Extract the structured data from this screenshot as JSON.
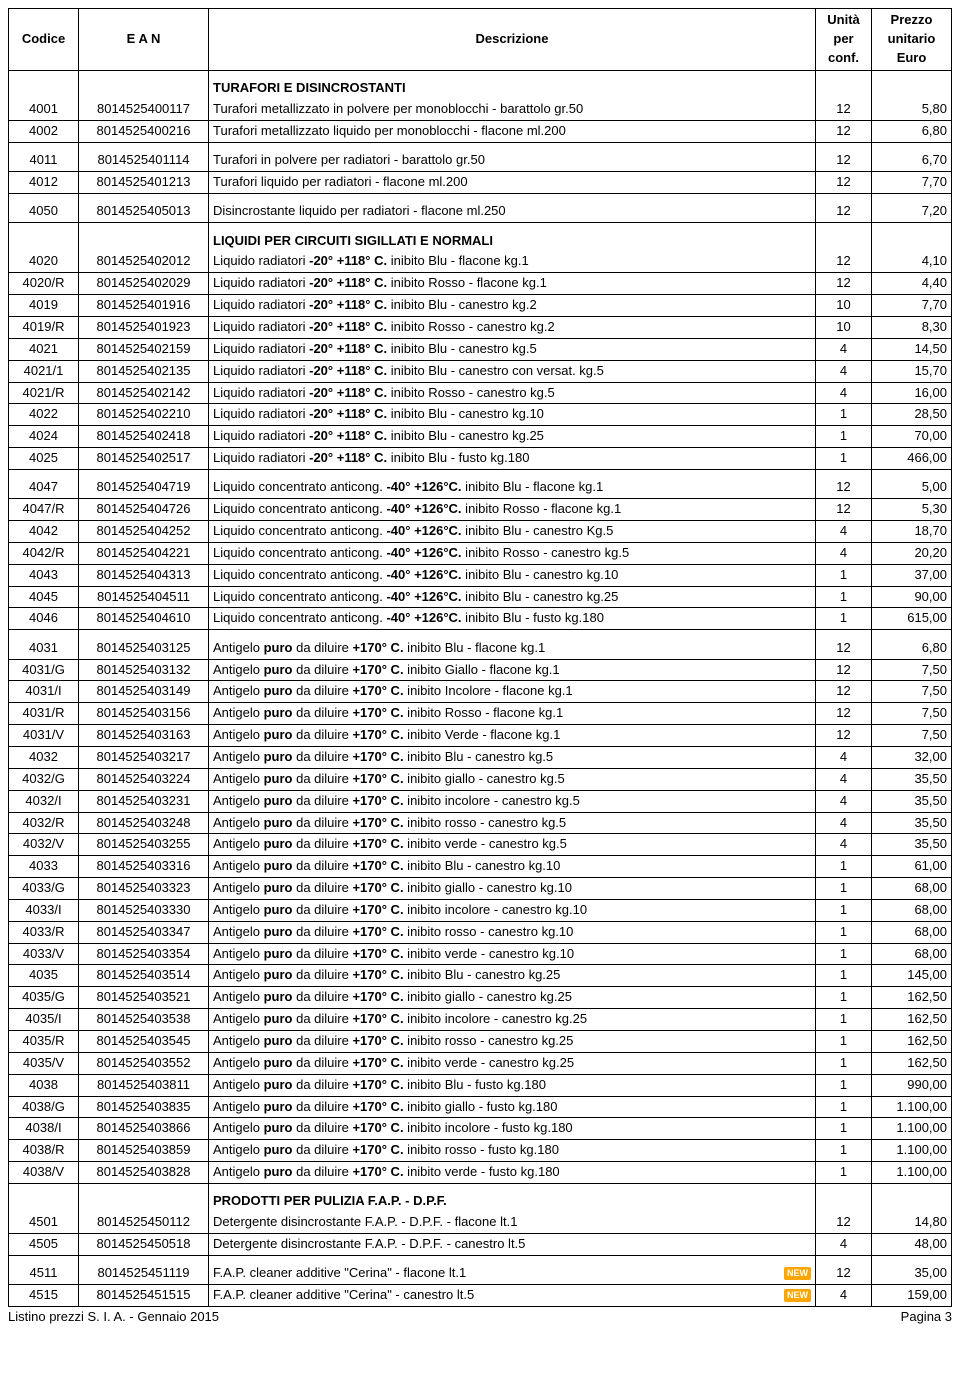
{
  "columns": {
    "codice": "Codice",
    "ean": "E A N",
    "desc": "Descrizione",
    "unita": "Unità per conf.",
    "prezzo": "Prezzo unitario Euro"
  },
  "footer_left": "Listino prezzi S. I. A. - Gennaio 2015",
  "footer_right": "Pagina  3",
  "new_label": "NEW",
  "groups": [
    {
      "title": "TURAFORI E DISINCROSTANTI",
      "spacer_before": true,
      "rows": [
        {
          "codice": "4001",
          "ean": "8014525400117",
          "desc": "Turafori metallizzato in polvere per monoblocchi - barattolo gr.50",
          "unita": "12",
          "prezzo": "5,80",
          "sep": true
        },
        {
          "codice": "4002",
          "ean": "8014525400216",
          "desc": "Turafori metallizzato liquido per monoblocchi - flacone ml.200",
          "unita": "12",
          "prezzo": "6,80",
          "sep": true,
          "spacer_after": true
        },
        {
          "codice": "4011",
          "ean": "8014525401114",
          "desc": "Turafori in polvere per radiatori - barattolo gr.50",
          "unita": "12",
          "prezzo": "6,70",
          "sep": true
        },
        {
          "codice": "4012",
          "ean": "8014525401213",
          "desc": "Turafori liquido per radiatori - flacone ml.200",
          "unita": "12",
          "prezzo": "7,70",
          "sep": true,
          "spacer_after": true
        },
        {
          "codice": "4050",
          "ean": "8014525405013",
          "desc": "Disincrostante liquido per radiatori - flacone ml.250",
          "unita": "12",
          "prezzo": "7,20",
          "sep": true
        }
      ]
    },
    {
      "title": "LIQUIDI PER CIRCUITI SIGILLATI E NORMALI",
      "spacer_before": true,
      "rows": [
        {
          "codice": "4020",
          "ean": "8014525402012",
          "desc_html": "Liquido radiatori <b>-20° +118° C.</b> inibito Blu - flacone kg.1",
          "unita": "12",
          "prezzo": "4,10",
          "sep": true
        },
        {
          "codice": "4020/R",
          "ean": "8014525402029",
          "desc_html": "Liquido radiatori <b>-20° +118° C.</b> inibito Rosso - flacone kg.1",
          "unita": "12",
          "prezzo": "4,40",
          "sep": true
        },
        {
          "codice": "4019",
          "ean": "8014525401916",
          "desc_html": "Liquido radiatori <b>-20° +118° C.</b> inibito Blu - canestro kg.2",
          "unita": "10",
          "prezzo": "7,70",
          "sep": true
        },
        {
          "codice": "4019/R",
          "ean": "8014525401923",
          "desc_html": "Liquido radiatori <b>-20° +118° C.</b> inibito Rosso - canestro kg.2",
          "unita": "10",
          "prezzo": "8,30",
          "sep": true
        },
        {
          "codice": "4021",
          "ean": "8014525402159",
          "desc_html": "Liquido radiatori <b>-20° +118° C.</b> inibito Blu - canestro kg.5",
          "unita": "4",
          "prezzo": "14,50",
          "sep": true
        },
        {
          "codice": "4021/1",
          "ean": "8014525402135",
          "desc_html": "Liquido radiatori <b>-20° +118° C.</b> inibito Blu - canestro con versat. kg.5",
          "unita": "4",
          "prezzo": "15,70",
          "sep": true
        },
        {
          "codice": "4021/R",
          "ean": "8014525402142",
          "desc_html": "Liquido radiatori <b>-20° +118° C.</b> inibito Rosso - canestro kg.5",
          "unita": "4",
          "prezzo": "16,00",
          "sep": true
        },
        {
          "codice": "4022",
          "ean": "8014525402210",
          "desc_html": "Liquido radiatori <b>-20° +118° C.</b> inibito Blu - canestro kg.10",
          "unita": "1",
          "prezzo": "28,50",
          "sep": true
        },
        {
          "codice": "4024",
          "ean": "8014525402418",
          "desc_html": "Liquido radiatori <b>-20° +118° C.</b> inibito Blu - canestro kg.25",
          "unita": "1",
          "prezzo": "70,00",
          "sep": true
        },
        {
          "codice": "4025",
          "ean": "8014525402517",
          "desc_html": "Liquido radiatori <b>-20° +118° C.</b> inibito Blu - fusto kg.180",
          "unita": "1",
          "prezzo": "466,00",
          "sep": true,
          "spacer_after": true
        },
        {
          "codice": "4047",
          "ean": "8014525404719",
          "desc_html": "Liquido concentrato anticong. <b>-40° +126°C.</b> inibito Blu - flacone kg.1",
          "unita": "12",
          "prezzo": "5,00",
          "sep": true
        },
        {
          "codice": "4047/R",
          "ean": "8014525404726",
          "desc_html": "Liquido concentrato anticong. <b>-40° +126°C.</b> inibito Rosso - flacone kg.1",
          "unita": "12",
          "prezzo": "5,30",
          "sep": true
        },
        {
          "codice": "4042",
          "ean": "8014525404252",
          "desc_html": "Liquido concentrato anticong. <b>-40° +126°C.</b> inibito Blu - canestro Kg.5",
          "unita": "4",
          "prezzo": "18,70",
          "sep": true
        },
        {
          "codice": "4042/R",
          "ean": "8014525404221",
          "desc_html": "Liquido concentrato anticong. <b>-40° +126°C.</b> inibito Rosso - canestro kg.5",
          "unita": "4",
          "prezzo": "20,20",
          "sep": true
        },
        {
          "codice": "4043",
          "ean": "8014525404313",
          "desc_html": "Liquido concentrato anticong. <b>-40° +126°C.</b> inibito Blu - canestro kg.10",
          "unita": "1",
          "prezzo": "37,00",
          "sep": true
        },
        {
          "codice": "4045",
          "ean": "8014525404511",
          "desc_html": "Liquido concentrato anticong. <b>-40° +126°C.</b> inibito Blu - canestro kg.25",
          "unita": "1",
          "prezzo": "90,00",
          "sep": true
        },
        {
          "codice": "4046",
          "ean": "8014525404610",
          "desc_html": "Liquido concentrato anticong. <b>-40° +126°C.</b> inibito Blu - fusto kg.180",
          "unita": "1",
          "prezzo": "615,00",
          "sep": true,
          "spacer_after": true
        },
        {
          "codice": "4031",
          "ean": "8014525403125",
          "desc_html": "Antigelo <b>puro</b> da diluire <b>+170° C.</b> inibito Blu - flacone kg.1",
          "unita": "12",
          "prezzo": "6,80",
          "sep": true
        },
        {
          "codice": "4031/G",
          "ean": "8014525403132",
          "desc_html": "Antigelo <b>puro</b> da diluire <b>+170° C.</b> inibito Giallo - flacone kg.1",
          "unita": "12",
          "prezzo": "7,50",
          "sep": true
        },
        {
          "codice": "4031/I",
          "ean": "8014525403149",
          "desc_html": "Antigelo <b>puro</b> da diluire <b>+170° C.</b> inibito Incolore - flacone kg.1",
          "unita": "12",
          "prezzo": "7,50",
          "sep": true
        },
        {
          "codice": "4031/R",
          "ean": "8014525403156",
          "desc_html": "Antigelo <b>puro</b> da diluire <b>+170° C.</b> inibito Rosso - flacone kg.1",
          "unita": "12",
          "prezzo": "7,50",
          "sep": true
        },
        {
          "codice": "4031/V",
          "ean": "8014525403163",
          "desc_html": "Antigelo <b>puro</b> da diluire <b>+170° C.</b> inibito Verde - flacone kg.1",
          "unita": "12",
          "prezzo": "7,50",
          "sep": true
        },
        {
          "codice": "4032",
          "ean": "8014525403217",
          "desc_html": "Antigelo <b>puro</b> da diluire <b>+170° C.</b> inibito Blu - canestro kg.5",
          "unita": "4",
          "prezzo": "32,00",
          "sep": true
        },
        {
          "codice": "4032/G",
          "ean": "8014525403224",
          "desc_html": "Antigelo <b>puro</b> da diluire <b>+170° C.</b> inibito giallo - canestro kg.5",
          "unita": "4",
          "prezzo": "35,50",
          "sep": true
        },
        {
          "codice": "4032/I",
          "ean": "8014525403231",
          "desc_html": "Antigelo <b>puro</b> da diluire <b>+170° C.</b> inibito incolore - canestro kg.5",
          "unita": "4",
          "prezzo": "35,50",
          "sep": true
        },
        {
          "codice": "4032/R",
          "ean": "8014525403248",
          "desc_html": "Antigelo <b>puro</b> da diluire <b>+170° C.</b> inibito rosso - canestro kg.5",
          "unita": "4",
          "prezzo": "35,50",
          "sep": true
        },
        {
          "codice": "4032/V",
          "ean": "8014525403255",
          "desc_html": "Antigelo <b>puro</b> da diluire <b>+170° C.</b> inibito verde - canestro kg.5",
          "unita": "4",
          "prezzo": "35,50",
          "sep": true
        },
        {
          "codice": "4033",
          "ean": "8014525403316",
          "desc_html": "Antigelo <b>puro</b> da diluire <b>+170° C.</b> inibito Blu - canestro kg.10",
          "unita": "1",
          "prezzo": "61,00",
          "sep": true
        },
        {
          "codice": "4033/G",
          "ean": "8014525403323",
          "desc_html": "Antigelo <b>puro</b> da diluire <b>+170° C.</b> inibito giallo - canestro kg.10",
          "unita": "1",
          "prezzo": "68,00",
          "sep": true
        },
        {
          "codice": "4033/I",
          "ean": "8014525403330",
          "desc_html": "Antigelo <b>puro</b> da diluire <b>+170° C.</b> inibito incolore - canestro kg.10",
          "unita": "1",
          "prezzo": "68,00",
          "sep": true
        },
        {
          "codice": "4033/R",
          "ean": "8014525403347",
          "desc_html": "Antigelo <b>puro</b> da diluire <b>+170° C.</b> inibito rosso - canestro kg.10",
          "unita": "1",
          "prezzo": "68,00",
          "sep": true
        },
        {
          "codice": "4033/V",
          "ean": "8014525403354",
          "desc_html": "Antigelo <b>puro</b> da diluire <b>+170° C.</b> inibito verde - canestro kg.10",
          "unita": "1",
          "prezzo": "68,00",
          "sep": true
        },
        {
          "codice": "4035",
          "ean": "8014525403514",
          "desc_html": "Antigelo <b>puro</b> da diluire <b>+170° C.</b> inibito Blu - canestro kg.25",
          "unita": "1",
          "prezzo": "145,00",
          "sep": true
        },
        {
          "codice": "4035/G",
          "ean": "8014525403521",
          "desc_html": "Antigelo <b>puro</b> da diluire <b>+170° C.</b> inibito giallo - canestro kg.25",
          "unita": "1",
          "prezzo": "162,50",
          "sep": true
        },
        {
          "codice": "4035/I",
          "ean": "8014525403538",
          "desc_html": "Antigelo <b>puro</b> da diluire <b>+170° C.</b> inibito incolore - canestro kg.25",
          "unita": "1",
          "prezzo": "162,50",
          "sep": true
        },
        {
          "codice": "4035/R",
          "ean": "8014525403545",
          "desc_html": "Antigelo <b>puro</b> da diluire <b>+170° C.</b> inibito rosso - canestro kg.25",
          "unita": "1",
          "prezzo": "162,50",
          "sep": true
        },
        {
          "codice": "4035/V",
          "ean": "8014525403552",
          "desc_html": "Antigelo <b>puro</b> da diluire <b>+170° C.</b> inibito verde - canestro kg.25",
          "unita": "1",
          "prezzo": "162,50",
          "sep": true
        },
        {
          "codice": "4038",
          "ean": "8014525403811",
          "desc_html": "Antigelo <b>puro</b> da diluire <b>+170° C.</b>  inibito Blu - fusto kg.180",
          "unita": "1",
          "prezzo": "990,00",
          "sep": true
        },
        {
          "codice": "4038/G",
          "ean": "8014525403835",
          "desc_html": "Antigelo <b>puro</b> da diluire <b>+170° C.</b> inibito giallo - fusto kg.180",
          "unita": "1",
          "prezzo": "1.100,00",
          "sep": true
        },
        {
          "codice": "4038/I",
          "ean": "8014525403866",
          "desc_html": "Antigelo <b>puro</b> da diluire <b>+170° C.</b> inibito incolore - fusto kg.180",
          "unita": "1",
          "prezzo": "1.100,00",
          "sep": true
        },
        {
          "codice": "4038/R",
          "ean": "8014525403859",
          "desc_html": "Antigelo <b>puro</b> da diluire <b>+170° C.</b> inibito rosso - fusto kg.180",
          "unita": "1",
          "prezzo": "1.100,00",
          "sep": true
        },
        {
          "codice": "4038/V",
          "ean": "8014525403828",
          "desc_html": "Antigelo <b>puro</b> da diluire <b>+170° C.</b> inibito verde - fusto kg.180",
          "unita": "1",
          "prezzo": "1.100,00",
          "sep": true
        }
      ]
    },
    {
      "title": "PRODOTTI PER PULIZIA F.A.P. - D.P.F.",
      "spacer_before": true,
      "rows": [
        {
          "codice": "4501",
          "ean": "8014525450112",
          "desc": "Detergente disincrostante F.A.P. - D.P.F. - flacone lt.1",
          "unita": "12",
          "prezzo": "14,80",
          "sep": true
        },
        {
          "codice": "4505",
          "ean": "8014525450518",
          "desc": "Detergente disincrostante F.A.P. - D.P.F. - canestro lt.5",
          "unita": "4",
          "prezzo": "48,00",
          "sep": true,
          "spacer_after": true
        },
        {
          "codice": "4511",
          "ean": "8014525451119",
          "desc": "F.A.P. cleaner additive \"Cerina\" - flacone lt.1",
          "unita": "12",
          "prezzo": "35,00",
          "sep": true,
          "new": true
        },
        {
          "codice": "4515",
          "ean": "8014525451515",
          "desc": "F.A.P. cleaner additive \"Cerina\" - canestro lt.5",
          "unita": "4",
          "prezzo": "159,00",
          "sep": true,
          "new": true
        }
      ]
    }
  ]
}
